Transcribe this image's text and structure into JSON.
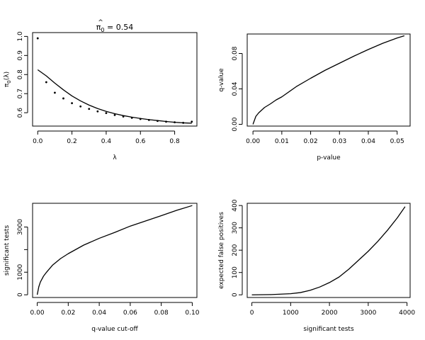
{
  "chart_data": [
    {
      "type": "scatter",
      "title": "π̂₀ = 0.54",
      "title_parts": {
        "symbol": "π",
        "hat": "^",
        "subscript": "0",
        "rest": " = 0.54"
      },
      "xlabel": "λ",
      "ylabel": "π₀(λ)",
      "ylabel_parts": {
        "symbol": "π",
        "subscript": "0",
        "rest": "(λ)"
      },
      "xlim": [
        -0.03,
        0.93
      ],
      "ylim": [
        0.53,
        1.02
      ],
      "x_ticks": [
        0.0,
        0.2,
        0.4,
        0.6,
        0.8
      ],
      "x_tick_labels": [
        "0.0",
        "0.2",
        "0.4",
        "0.6",
        "0.8"
      ],
      "y_ticks": [
        0.6,
        0.7,
        0.8,
        0.9,
        1.0
      ],
      "y_tick_labels": [
        "0.6",
        "0.7",
        "0.8",
        "0.9",
        "1.0"
      ],
      "grid": false,
      "series": [
        {
          "style": "points",
          "x": [
            0.0,
            0.05,
            0.1,
            0.15,
            0.2,
            0.25,
            0.3,
            0.35,
            0.4,
            0.45,
            0.5,
            0.55,
            0.6,
            0.65,
            0.7,
            0.75,
            0.8,
            0.85,
            0.9
          ],
          "values": [
            0.99,
            0.76,
            0.705,
            0.675,
            0.65,
            0.633,
            0.62,
            0.607,
            0.598,
            0.588,
            0.58,
            0.573,
            0.567,
            0.562,
            0.557,
            0.553,
            0.55,
            0.547,
            0.553
          ]
        },
        {
          "style": "line",
          "x": [
            0.0,
            0.05,
            0.1,
            0.15,
            0.2,
            0.25,
            0.3,
            0.35,
            0.4,
            0.45,
            0.5,
            0.55,
            0.6,
            0.65,
            0.7,
            0.75,
            0.8,
            0.85,
            0.9
          ],
          "values": [
            0.825,
            0.793,
            0.755,
            0.72,
            0.688,
            0.662,
            0.64,
            0.622,
            0.607,
            0.595,
            0.585,
            0.577,
            0.57,
            0.564,
            0.559,
            0.554,
            0.55,
            0.547,
            0.545
          ]
        }
      ]
    },
    {
      "type": "line",
      "title": "",
      "xlabel": "p-value",
      "ylabel": "q-value",
      "xlim": [
        -0.002,
        0.0545
      ],
      "ylim": [
        -0.002,
        0.102
      ],
      "x_ticks": [
        0.0,
        0.01,
        0.02,
        0.03,
        0.04,
        0.05
      ],
      "x_tick_labels": [
        "0.00",
        "0.01",
        "0.02",
        "0.03",
        "0.04",
        "0.05"
      ],
      "y_ticks": [
        0.0,
        0.04,
        0.08
      ],
      "y_tick_labels": [
        "0.00",
        "0.04",
        "0.08"
      ],
      "grid": false,
      "series": [
        {
          "style": "line",
          "x": [
            0.0,
            0.001,
            0.002,
            0.004,
            0.006,
            0.008,
            0.01,
            0.015,
            0.02,
            0.025,
            0.03,
            0.035,
            0.04,
            0.045,
            0.05,
            0.0525
          ],
          "values": [
            0.0,
            0.009,
            0.013,
            0.019,
            0.023,
            0.0275,
            0.031,
            0.0425,
            0.052,
            0.061,
            0.069,
            0.077,
            0.0845,
            0.0915,
            0.0975,
            0.1
          ]
        }
      ]
    },
    {
      "type": "line",
      "title": "",
      "xlabel": "q-value cut-off",
      "ylabel": "significant tests",
      "xlim": [
        -0.003,
        0.103
      ],
      "ylim": [
        -120,
        4050
      ],
      "x_ticks": [
        0.0,
        0.02,
        0.04,
        0.06,
        0.08,
        0.1
      ],
      "x_tick_labels": [
        "0.00",
        "0.02",
        "0.04",
        "0.06",
        "0.08",
        "0.10"
      ],
      "y_ticks": [
        0,
        1000,
        2000,
        3000
      ],
      "y_tick_labels": [
        "0",
        "1000",
        "",
        "3000"
      ],
      "grid": false,
      "series": [
        {
          "style": "line",
          "x": [
            0.0,
            0.001,
            0.002,
            0.004,
            0.006,
            0.01,
            0.015,
            0.02,
            0.03,
            0.04,
            0.05,
            0.06,
            0.07,
            0.08,
            0.09,
            0.1
          ],
          "values": [
            0,
            350,
            560,
            820,
            1000,
            1320,
            1600,
            1820,
            2200,
            2500,
            2760,
            3040,
            3270,
            3500,
            3740,
            3950
          ]
        }
      ]
    },
    {
      "type": "line",
      "title": "",
      "xlabel": "significant tests",
      "ylabel": "expected false positives",
      "xlim": [
        -120,
        4080
      ],
      "ylim": [
        -12,
        410
      ],
      "x_ticks": [
        0,
        1000,
        2000,
        3000,
        4000
      ],
      "x_tick_labels": [
        "0",
        "1000",
        "2000",
        "3000",
        "4000"
      ],
      "y_ticks": [
        0,
        100,
        200,
        300,
        400
      ],
      "y_tick_labels": [
        "0",
        "100",
        "200",
        "300",
        "400"
      ],
      "grid": false,
      "series": [
        {
          "style": "line",
          "x": [
            0,
            500,
            1000,
            1250,
            1500,
            1750,
            2000,
            2250,
            2500,
            2750,
            3000,
            3250,
            3500,
            3750,
            3950
          ],
          "values": [
            0,
            1,
            5,
            10,
            20,
            35,
            55,
            80,
            115,
            155,
            195,
            240,
            290,
            345,
            395
          ]
        }
      ]
    }
  ]
}
